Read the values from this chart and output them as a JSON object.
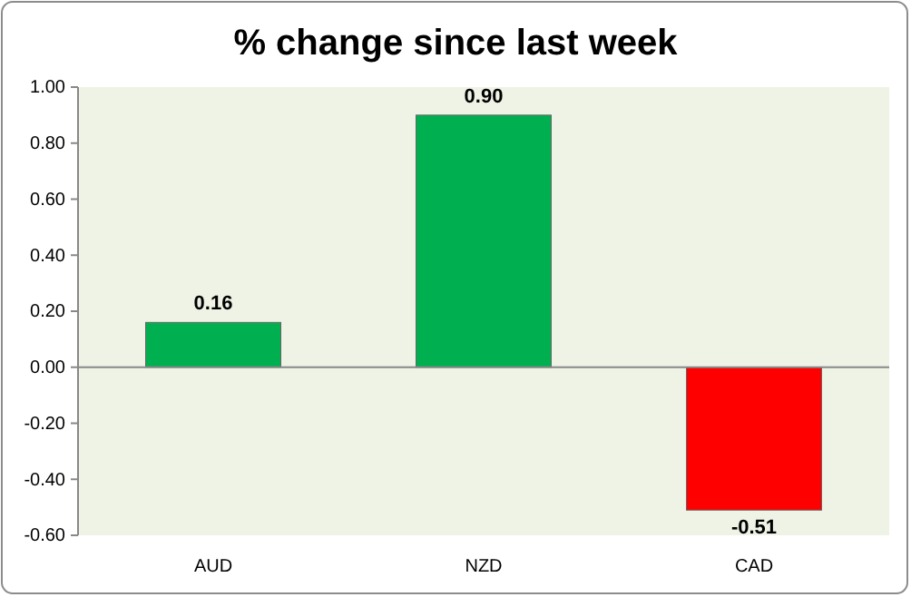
{
  "chart_data": {
    "type": "bar",
    "title": "% change since last week",
    "categories": [
      "AUD",
      "NZD",
      "CAD"
    ],
    "values": [
      0.16,
      0.9,
      -0.51
    ],
    "colors": [
      "#00b050",
      "#00b050",
      "#ff0000"
    ],
    "ylim": [
      -0.6,
      1.0
    ],
    "yticks": [
      {
        "value": -0.6,
        "label": "-0.60"
      },
      {
        "value": -0.4,
        "label": "-0.40"
      },
      {
        "value": -0.2,
        "label": "-0.20"
      },
      {
        "value": 0,
        "label": "0.00"
      },
      {
        "value": 0.2,
        "label": "0.20"
      },
      {
        "value": 0.4,
        "label": "0.40"
      },
      {
        "value": 0.6,
        "label": "0.60"
      },
      {
        "value": 0.8,
        "label": "0.80"
      },
      {
        "value": 1.0,
        "label": "1.00"
      }
    ],
    "value_labels": [
      "0.16",
      "0.90",
      "-0.51"
    ]
  }
}
